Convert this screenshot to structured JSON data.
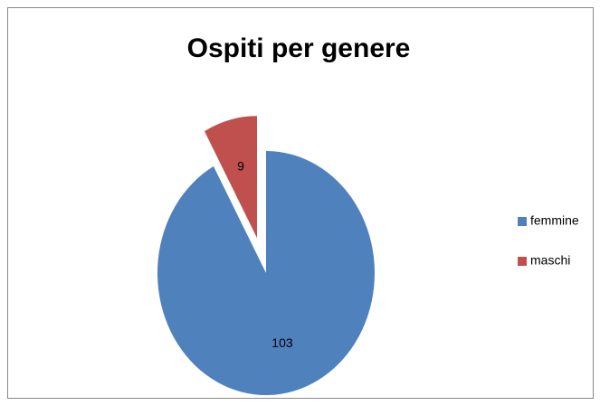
{
  "chart_data": {
    "type": "pie",
    "title": "Ospiti per genere",
    "categories": [
      "femmine",
      "maschi"
    ],
    "values": [
      103,
      9
    ],
    "colors": [
      "#4f81bd",
      "#c0504d"
    ],
    "legend": "right",
    "exploded": [
      false,
      true
    ]
  }
}
